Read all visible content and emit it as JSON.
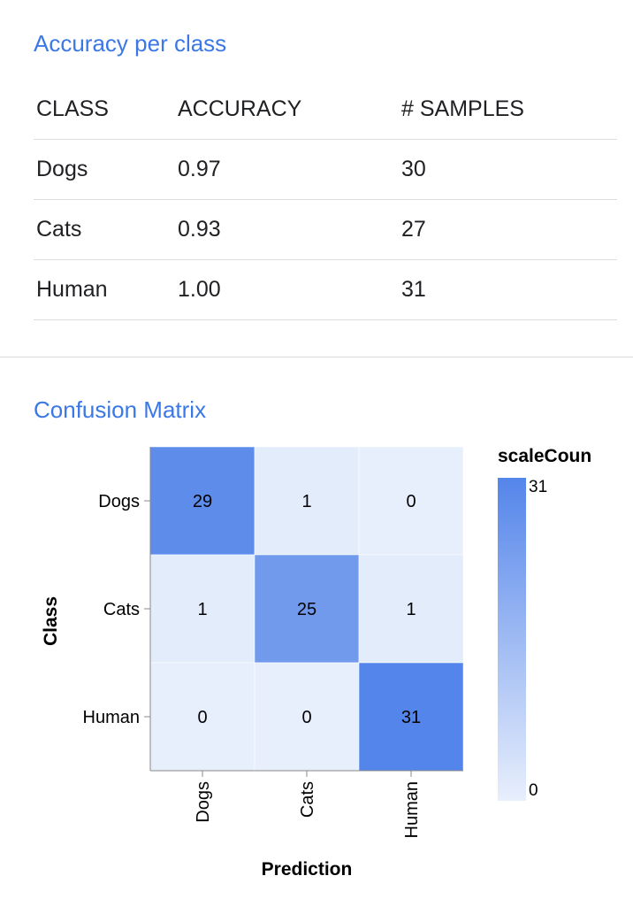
{
  "accuracy_section": {
    "title": "Accuracy per class",
    "headers": [
      "CLASS",
      "ACCURACY",
      "# SAMPLES"
    ],
    "rows": [
      {
        "class": "Dogs",
        "accuracy": "0.97",
        "samples": "30"
      },
      {
        "class": "Cats",
        "accuracy": "0.93",
        "samples": "27"
      },
      {
        "class": "Human",
        "accuracy": "1.00",
        "samples": "31"
      }
    ]
  },
  "confusion_section": {
    "title": "Confusion Matrix"
  },
  "chart_data": {
    "type": "heatmap",
    "x_categories": [
      "Dogs",
      "Cats",
      "Human"
    ],
    "y_categories": [
      "Dogs",
      "Cats",
      "Human"
    ],
    "xlabel": "Prediction",
    "ylabel": "Class",
    "values": [
      [
        29,
        1,
        0
      ],
      [
        1,
        25,
        1
      ],
      [
        0,
        0,
        31
      ]
    ],
    "legend": {
      "title": "scaleCoun",
      "min": 0,
      "max": 31,
      "min_label": "0",
      "max_label": "31",
      "placement": "right"
    },
    "colors": {
      "low": "#e8effc",
      "high": "#5485ea"
    }
  }
}
